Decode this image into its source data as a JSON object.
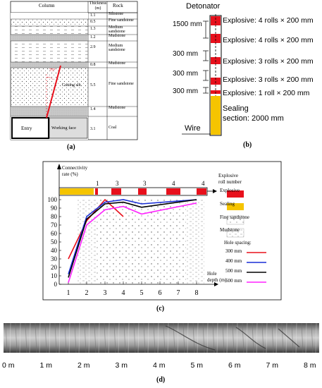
{
  "panel_a": {
    "caption": "(a)",
    "headers": {
      "column": "Column",
      "thickness": "Thickness (m)",
      "rock": "Rock"
    },
    "layers": [
      {
        "thickness": "1.1",
        "rock": "Siltstone"
      },
      {
        "thickness": "0.5",
        "rock": "Fine sandstone"
      },
      {
        "thickness": "1.3",
        "rock": "Medium sandstone"
      },
      {
        "thickness": "1.2",
        "rock": "Mudstone"
      },
      {
        "thickness": "2.9",
        "rock": "Medium sandstone"
      },
      {
        "thickness": "0.8",
        "rock": "Mudstone"
      },
      {
        "thickness": "5.5",
        "rock": "Fine sandstone"
      },
      {
        "thickness": "1.4",
        "rock": "Mudstone"
      },
      {
        "thickness": "3.1",
        "rock": "Coal"
      }
    ],
    "angle_label": "75°",
    "cutting_slit_label": "Cutting slit",
    "entry_label": "Entry",
    "working_face_label": "Working face"
  },
  "panel_b": {
    "caption": "(b)",
    "detonator_label": "Detonator",
    "wire_label": "Wire",
    "spacings": [
      "1500 mm",
      "300 mm",
      "300 mm",
      "300 mm"
    ],
    "charges": [
      "Explosive: 4 rolls × 200 mm",
      "Explosive: 4 rolls × 200 mm",
      "Explosive: 3 rolls × 200 mm",
      "Explosive: 3 rolls × 200 mm",
      "Explosive: 1 roll × 200 mm"
    ],
    "sealing_line1": "Sealing",
    "sealing_line2": "section: 2000 mm",
    "colors": {
      "explosive": "#e8101c",
      "sealing": "#f5c400"
    }
  },
  "panel_c": {
    "caption": "(c)",
    "y_title_line1": "Connectivity",
    "y_title_line2": "rate (%)",
    "x_title_line1": "Hole",
    "x_title_line2": "depth (m)",
    "roll_title_line1": "Explosive",
    "roll_title_line2": "roll number",
    "roll_numbers": [
      "1",
      "3",
      "3",
      "4",
      "4"
    ],
    "legend": {
      "explosive": "Explosive",
      "sealing": "Sealing",
      "fine_sandstone": "Fine sandstone",
      "mudstone": "Mudstone",
      "hole_spacing": "Hole spacing:",
      "series": [
        "300 mm",
        "400 mm",
        "500 mm",
        "600 mm"
      ]
    },
    "chart_data": {
      "type": "line",
      "xlabel": "Hole depth (m)",
      "ylabel": "Connectivity rate (%)",
      "x_ticks": [
        "1",
        "2",
        "3",
        "4",
        "5",
        "6",
        "7",
        "8"
      ],
      "y_ticks": [
        "0",
        "10",
        "20",
        "30",
        "40",
        "50",
        "60",
        "70",
        "80",
        "90",
        "100"
      ],
      "xlim": [
        0.5,
        8.5
      ],
      "ylim": [
        0,
        100
      ],
      "series": [
        {
          "name": "300 mm",
          "color": "#e8101c",
          "x": [
            1,
            2,
            3,
            4
          ],
          "y": [
            30,
            75,
            100,
            80
          ]
        },
        {
          "name": "400 mm",
          "color": "#1a2fd6",
          "x": [
            1,
            2,
            3,
            4,
            5,
            8
          ],
          "y": [
            12,
            80,
            97,
            100,
            95,
            100
          ]
        },
        {
          "name": "500 mm",
          "color": "#000000",
          "x": [
            1,
            2,
            3,
            4,
            5,
            8
          ],
          "y": [
            8,
            77,
            95,
            97,
            91,
            100
          ]
        },
        {
          "name": "600 mm",
          "color": "#ff22ff",
          "x": [
            1,
            2,
            3,
            4,
            5,
            8
          ],
          "y": [
            2,
            70,
            88,
            92,
            83,
            96
          ]
        }
      ]
    }
  },
  "panel_d": {
    "caption": "(d)",
    "scale_labels": [
      "0 m",
      "1 m",
      "2 m",
      "3 m",
      "4 m",
      "5 m",
      "6 m",
      "7 m",
      "8 m"
    ]
  }
}
